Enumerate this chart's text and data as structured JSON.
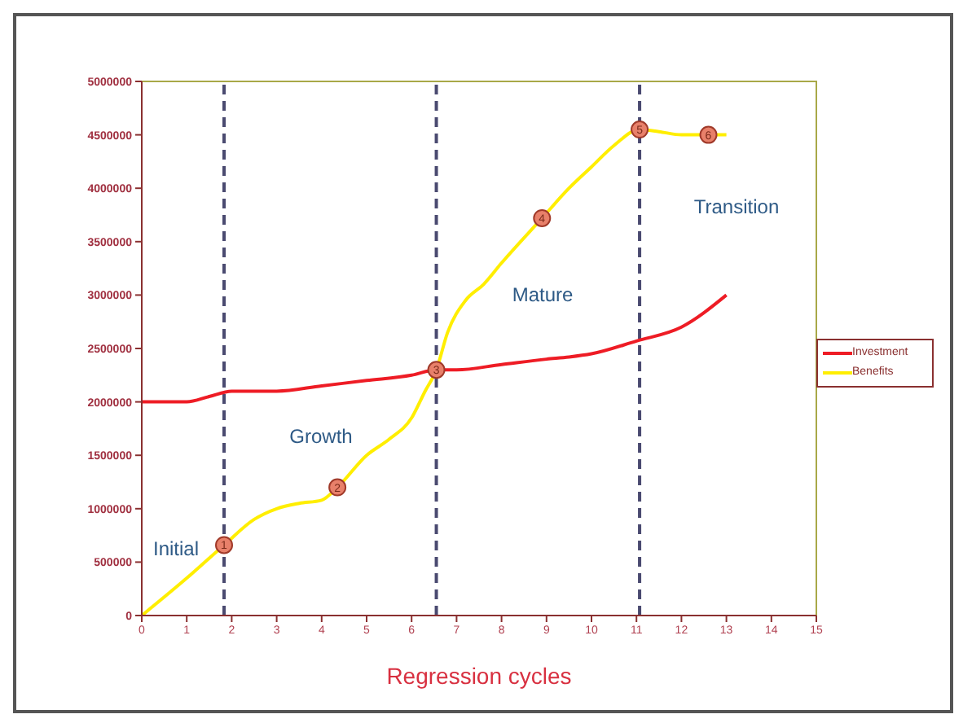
{
  "chart_data": {
    "type": "line",
    "xlabel": "Regression cycles",
    "xlim": [
      0,
      15
    ],
    "xticks": [
      0,
      1,
      2,
      3,
      4,
      5,
      6,
      7,
      8,
      9,
      10,
      11,
      12,
      13,
      14,
      15
    ],
    "ylim": [
      0,
      5000000
    ],
    "yticks": [
      0,
      500000,
      1000000,
      1500000,
      2000000,
      2500000,
      3000000,
      3500000,
      4000000,
      4500000,
      5000000
    ],
    "grid": false,
    "legend": "right",
    "line_style": "solid",
    "series": [
      {
        "name": "Investment",
        "color": "#ee1c25",
        "x": [
          0,
          1,
          1.5,
          2,
          2.5,
          3,
          4,
          5,
          6,
          6.55,
          7,
          8,
          9,
          9.5,
          10,
          11,
          12,
          13
        ],
        "values": [
          2000000,
          2000000,
          2050000,
          2100000,
          2100000,
          2100000,
          2150000,
          2200000,
          2250000,
          2300000,
          2300000,
          2350000,
          2400000,
          2420000,
          2450000,
          2570000,
          2700000,
          3000000
        ]
      },
      {
        "name": "Benefits",
        "color": "#ffee00",
        "x": [
          0,
          1,
          1.83,
          2.5,
          3,
          3.5,
          4,
          4.35,
          5,
          5.5,
          6,
          6.3,
          6.55,
          6.8,
          7.2,
          7.6,
          8,
          8.9,
          9.5,
          10,
          10.5,
          11.07,
          11.5,
          12,
          12.6,
          13
        ],
        "values": [
          0,
          350000,
          660000,
          900000,
          1000000,
          1050000,
          1080000,
          1200000,
          1500000,
          1650000,
          1850000,
          2100000,
          2300000,
          2650000,
          2950000,
          3100000,
          3300000,
          3720000,
          4000000,
          4200000,
          4400000,
          4550000,
          4530000,
          4500000,
          4500000,
          4500000
        ]
      }
    ],
    "ref_lines": [
      {
        "axis": "x",
        "value": 1.83,
        "color": "#4a4a70",
        "line_style": "dashed"
      },
      {
        "axis": "x",
        "value": 6.55,
        "color": "#4a4a70",
        "line_style": "dashed"
      },
      {
        "axis": "x",
        "value": 11.07,
        "color": "#4a4a70",
        "line_style": "dashed"
      }
    ],
    "annotations": [
      "Initial",
      "Growth",
      "Mature",
      "Transition",
      {
        "text": "1",
        "x": 1.83,
        "y": 660000
      },
      {
        "text": "2",
        "x": 4.35,
        "y": 1200000
      },
      {
        "text": "3",
        "x": 6.55,
        "y": 2300000
      },
      {
        "text": "4",
        "x": 8.9,
        "y": 3720000
      },
      {
        "text": "5",
        "x": 11.07,
        "y": 4550000
      },
      {
        "text": "6",
        "x": 12.6,
        "y": 4500000
      }
    ]
  }
}
